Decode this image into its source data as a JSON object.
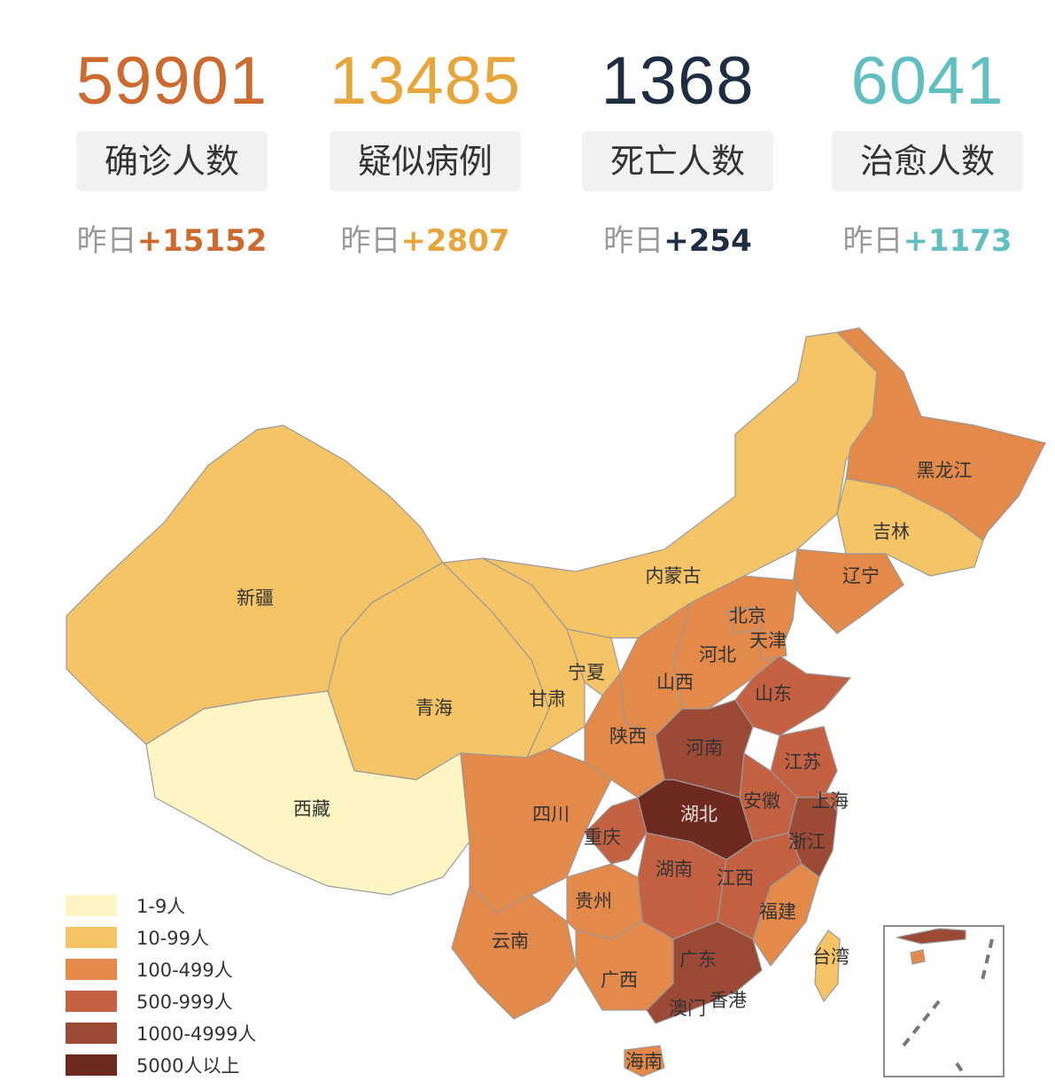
{
  "stats": [
    {
      "value": "59901",
      "label": "确诊人数",
      "prefix": "昨日",
      "delta": "+15152",
      "color": "#cc6a2f"
    },
    {
      "value": "13485",
      "label": "疑似病例",
      "prefix": "昨日",
      "delta": "+2807",
      "color": "#e6a63b"
    },
    {
      "value": "1368",
      "label": "死亡人数",
      "prefix": "昨日",
      "delta": "+254",
      "color": "#1e2d42"
    },
    {
      "value": "6041",
      "label": "治愈人数",
      "prefix": "昨日",
      "delta": "+1173",
      "color": "#62bfbf"
    }
  ],
  "legend": [
    {
      "label": "1-9人",
      "color": "#fdf5c3"
    },
    {
      "label": "10-99人",
      "color": "#f5c466"
    },
    {
      "label": "100-499人",
      "color": "#e3894a"
    },
    {
      "label": "500-999人",
      "color": "#c46143"
    },
    {
      "label": "1000-4999人",
      "color": "#9c4a36"
    },
    {
      "label": "5000人以上",
      "color": "#6e2a1f"
    }
  ],
  "provinces": {
    "heilongjiang": "黑龙江",
    "jilin": "吉林",
    "liaoning": "辽宁",
    "neimenggu": "内蒙古",
    "beijing": "北京",
    "tianjin": "天津",
    "hebei": "河北",
    "shanxi": "山西",
    "shandong": "山东",
    "xinjiang": "新疆",
    "qinghai": "青海",
    "gansu": "甘肃",
    "ningxia": "宁夏",
    "shaanxi": "陕西",
    "henan": "河南",
    "jiangsu": "江苏",
    "anhui": "安徽",
    "shanghai": "上海",
    "hubei": "湖北",
    "zhejiang": "浙江",
    "sichuan": "四川",
    "chongqing": "重庆",
    "xizang": "西藏",
    "hunan": "湖南",
    "jiangxi": "江西",
    "fujian": "福建",
    "guizhou": "贵州",
    "yunnan": "云南",
    "guangxi": "广西",
    "guangdong": "广东",
    "taiwan": "台湾",
    "aomen": "澳门",
    "xianggang": "香港",
    "hainan": "海南"
  }
}
